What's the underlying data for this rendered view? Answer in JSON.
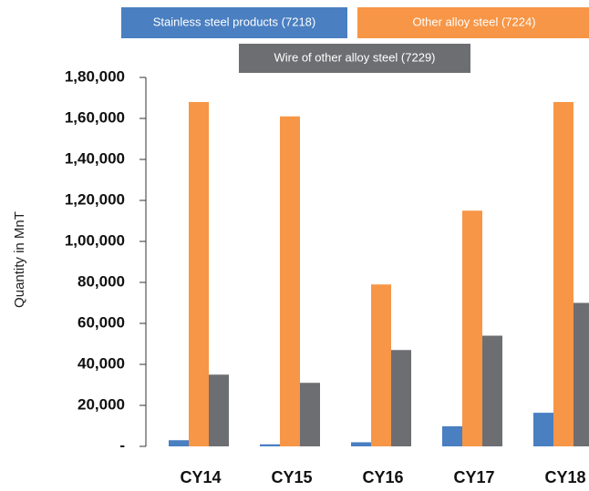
{
  "chart_data": {
    "type": "bar",
    "y_label": "Quantity in MnT",
    "categories": [
      "CY14",
      "CY15",
      "CY16",
      "CY17",
      "CY18"
    ],
    "series": [
      {
        "name": "Stainless steel products (7218)",
        "color": "#4a7fc1",
        "values": [
          3000,
          1000,
          2000,
          9800,
          16400
        ]
      },
      {
        "name": "Other alloy steel (7224)",
        "color": "#f79646",
        "values": [
          168000,
          161000,
          79000,
          115000,
          168000
        ]
      },
      {
        "name": "Wire of other alloy steel (7229)",
        "color": "#6d6e71",
        "values": [
          35000,
          31000,
          47000,
          54000,
          70000
        ]
      }
    ],
    "ylim": [
      0,
      180000
    ],
    "yticks": [
      {
        "value": 0,
        "label": "-"
      },
      {
        "value": 20000,
        "label": "20,000"
      },
      {
        "value": 40000,
        "label": "40,000"
      },
      {
        "value": 60000,
        "label": "60,000"
      },
      {
        "value": 80000,
        "label": "80,000"
      },
      {
        "value": 100000,
        "label": "1,00,000"
      },
      {
        "value": 120000,
        "label": "1,20,000"
      },
      {
        "value": 140000,
        "label": "1,40,000"
      },
      {
        "value": 160000,
        "label": "1,60,000"
      },
      {
        "value": 180000,
        "label": "1,80,000"
      }
    ],
    "legend": "top"
  }
}
